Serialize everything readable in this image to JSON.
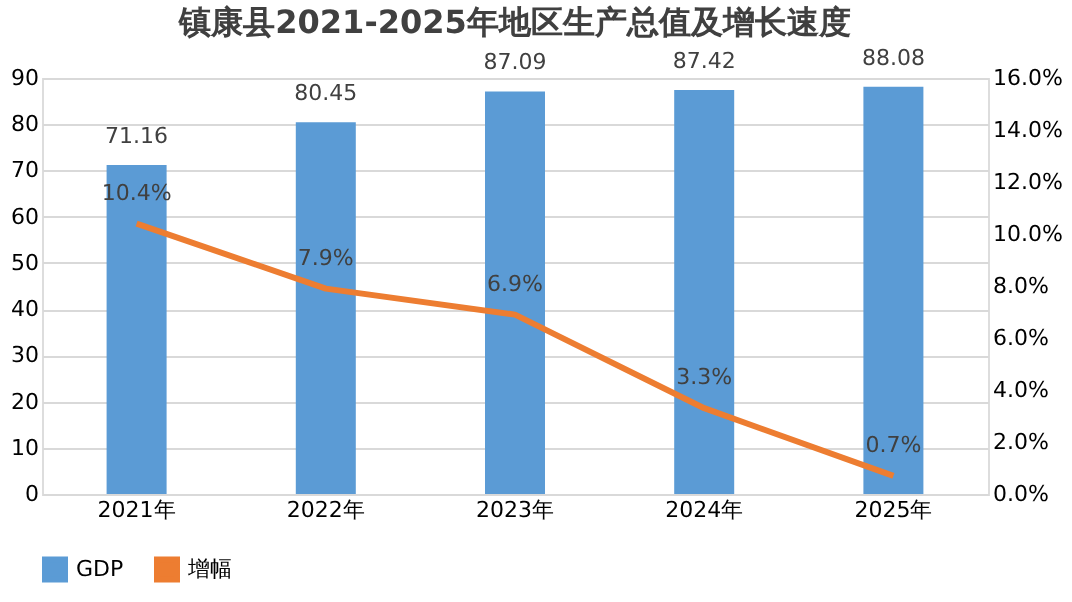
{
  "chart_data": {
    "type": "bar",
    "title": "镇康县2021-2025年地区生产总值及增长速度",
    "categories": [
      "2021年",
      "2022年",
      "2023年",
      "2024年",
      "2025年"
    ],
    "series": [
      {
        "name": "GDP",
        "color": "#5b9bd5",
        "values": [
          71.16,
          80.45,
          87.09,
          87.42,
          88.08
        ],
        "value_labels": [
          "71.16",
          "80.45",
          "87.09",
          "87.42",
          "88.08"
        ]
      },
      {
        "name": "增幅",
        "type": "line",
        "axis": "y2",
        "color": "#ed7d31",
        "values": [
          10.4,
          7.9,
          6.9,
          3.3,
          0.7
        ],
        "value_labels": [
          "10.4%",
          "7.9%",
          "6.9%",
          "3.3%",
          "0.7%"
        ]
      }
    ],
    "ylim": [
      0,
      90
    ],
    "yticks": [
      0,
      10,
      20,
      30,
      40,
      50,
      60,
      70,
      80,
      90
    ],
    "y2lim": [
      0,
      16
    ],
    "y2ticks": [
      {
        "value": 0,
        "label": "0.0%"
      },
      {
        "value": 2,
        "label": "2.0%"
      },
      {
        "value": 4,
        "label": "4.0%"
      },
      {
        "value": 6,
        "label": "6.0%"
      },
      {
        "value": 8,
        "label": "8.0%"
      },
      {
        "value": 10,
        "label": "10.0%"
      },
      {
        "value": 12,
        "label": "12.0%"
      },
      {
        "value": 14,
        "label": "14.0%"
      },
      {
        "value": 16,
        "label": "16.0%"
      }
    ],
    "grid": "y",
    "legend": "bottom",
    "line_style": "solid",
    "marker": "none"
  }
}
